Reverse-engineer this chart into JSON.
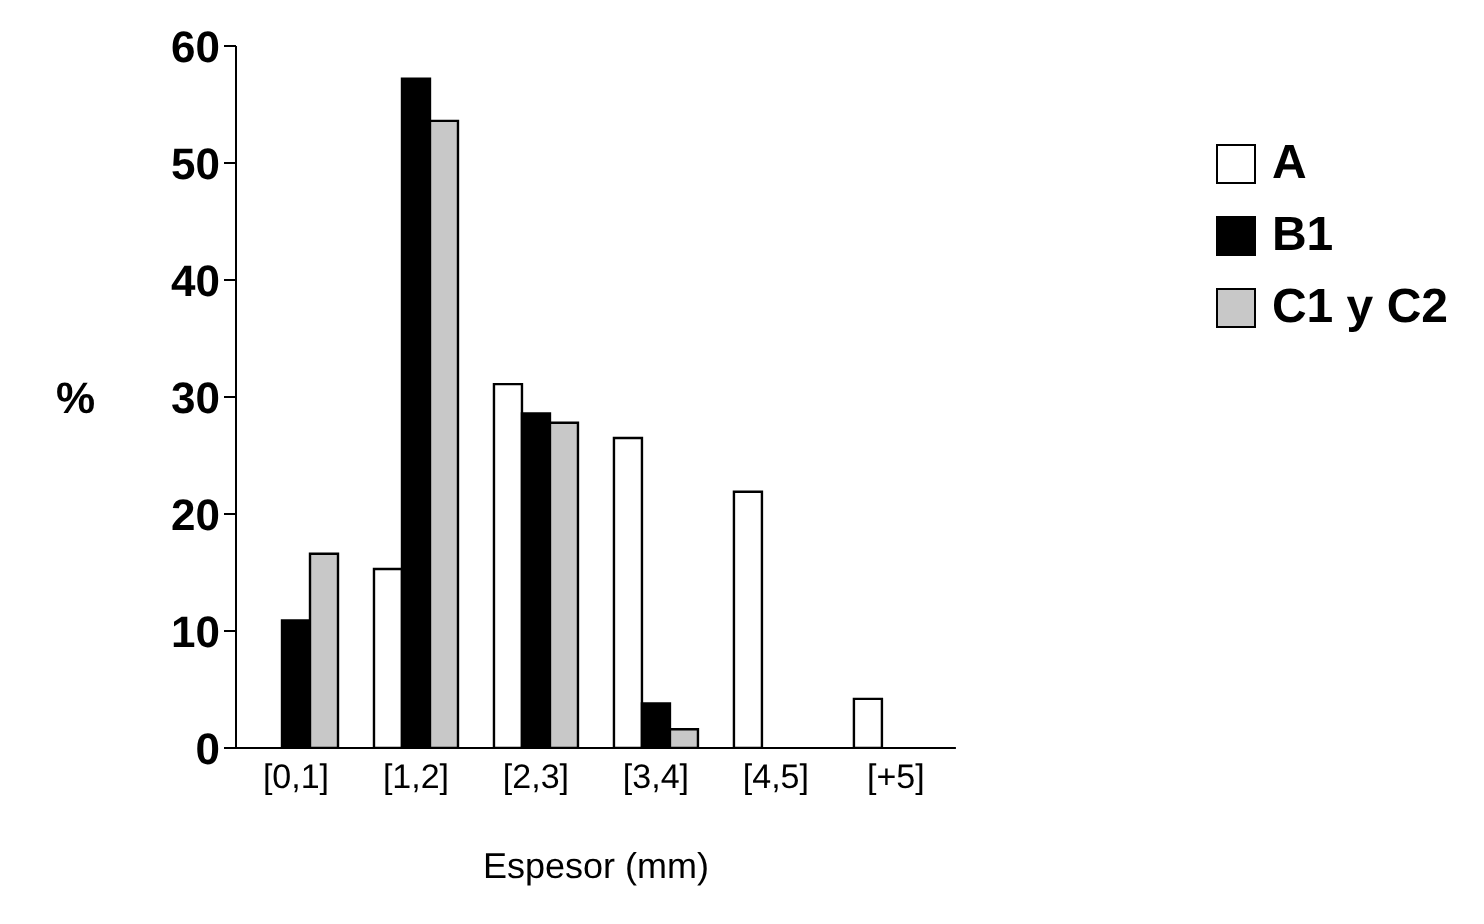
{
  "chart_data": {
    "type": "bar",
    "xlabel": "Espesor (mm)",
    "ylabel": "%",
    "categories": [
      "[0,1]",
      "[1,2]",
      "[2,3]",
      "[3,4]",
      "[4,5]",
      "[+5]"
    ],
    "series": [
      {
        "name": "A",
        "color": "#ffffff",
        "values": [
          0,
          15.3,
          31.1,
          26.5,
          21.9,
          4.2
        ]
      },
      {
        "name": "B1",
        "color": "#000000",
        "values": [
          10.9,
          57.2,
          28.6,
          3.8,
          0,
          0
        ]
      },
      {
        "name": "C1 y C2",
        "color": "#c8c8c8",
        "values": [
          16.6,
          53.6,
          27.8,
          1.6,
          0,
          0
        ]
      }
    ],
    "ylim": [
      0,
      60
    ],
    "yticks": [
      0,
      10,
      20,
      30,
      40,
      50,
      60
    ],
    "grid": false,
    "legend": "top right"
  }
}
